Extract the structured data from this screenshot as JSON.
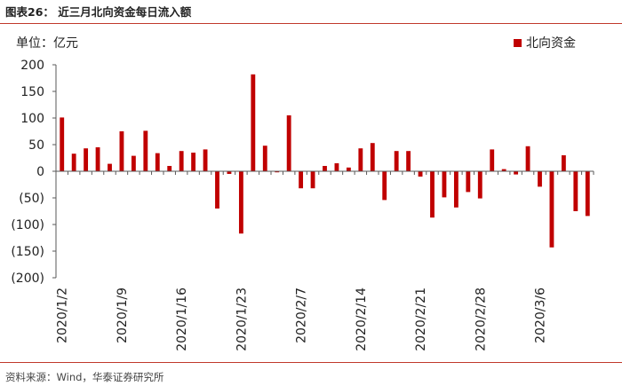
{
  "header": {
    "title": "图表26：  近三月北向资金每日流入额"
  },
  "footer": {
    "source": "资料来源：Wind，华泰证券研究所"
  },
  "colors": {
    "bar": "#c00000",
    "rule": "#c0392b",
    "axis": "#595959"
  },
  "chart_data": {
    "type": "bar",
    "ylabel": "单位：亿元",
    "ylim": [
      -200,
      200
    ],
    "yticks": [
      200,
      150,
      100,
      50,
      0,
      -50,
      -100,
      -150,
      -200
    ],
    "ytick_labels": [
      "200",
      "150",
      "100",
      "50",
      "0",
      "(50)",
      "(100)",
      "(150)",
      "(200)"
    ],
    "xtick_labels": [
      "2020/1/2",
      "2020/1/9",
      "2020/1/16",
      "2020/1/23",
      "2020/2/7",
      "2020/2/14",
      "2020/2/21",
      "2020/2/28",
      "2020/3/6"
    ],
    "xtick_index": [
      0,
      5,
      10,
      15,
      20,
      25,
      30,
      35,
      40
    ],
    "grid": false,
    "legend_position": "top-right",
    "series": [
      {
        "name": "北向资金",
        "values": [
          101,
          33,
          43,
          45,
          14,
          75,
          29,
          76,
          34,
          10,
          38,
          35,
          41,
          -70,
          -5,
          -117,
          182,
          48,
          -2,
          105,
          -32,
          -32,
          10,
          15,
          7,
          43,
          53,
          -54,
          38,
          38,
          -10,
          -87,
          -49,
          -68,
          -39,
          -51,
          41,
          4,
          -6,
          47,
          -29,
          -143,
          30,
          -75,
          -84
        ]
      }
    ]
  }
}
